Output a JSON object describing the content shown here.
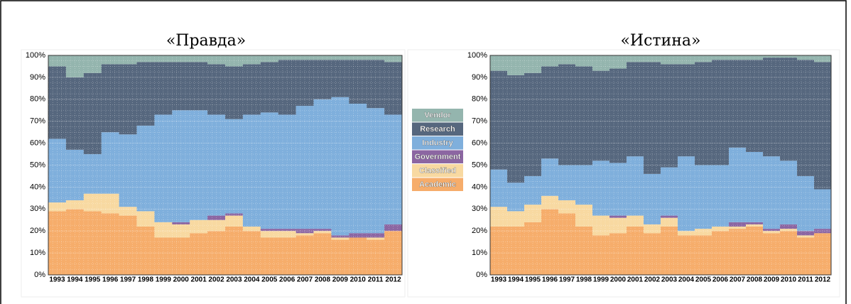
{
  "chart_data": [
    {
      "type": "stacked-bar",
      "title": "«Правда»",
      "categories": [
        "1993",
        "1994",
        "1995",
        "1996",
        "1997",
        "1998",
        "1999",
        "2000",
        "2001",
        "2002",
        "2003",
        "2004",
        "2005",
        "2006",
        "2007",
        "2008",
        "2009",
        "2010",
        "2011",
        "2012"
      ],
      "series": [
        {
          "name": "Academic",
          "color": "#f6ad6b",
          "values": [
            29,
            30,
            29,
            28,
            27,
            22,
            17,
            17,
            19,
            20,
            22,
            20,
            17,
            17,
            18,
            19,
            16,
            17,
            16,
            20
          ]
        },
        {
          "name": "Classified",
          "color": "#f8d9a1",
          "values": [
            4,
            4,
            8,
            9,
            4,
            7,
            7,
            6,
            6,
            5,
            5,
            2,
            3,
            3,
            1,
            1,
            1,
            0,
            1,
            0
          ]
        },
        {
          "name": "Government",
          "color": "#8c66a2",
          "values": [
            0,
            0,
            0,
            0,
            0,
            0,
            0,
            1,
            0,
            2,
            1,
            0,
            1,
            1,
            2,
            1,
            1,
            2,
            2,
            3
          ]
        },
        {
          "name": "Industry",
          "color": "#7fafdc",
          "values": [
            29,
            23,
            18,
            28,
            33,
            39,
            49,
            51,
            50,
            46,
            43,
            51,
            53,
            52,
            56,
            59,
            63,
            59,
            57,
            50
          ]
        },
        {
          "name": "Research",
          "color": "#56677e",
          "values": [
            33,
            33,
            37,
            31,
            32,
            29,
            24,
            22,
            22,
            23,
            24,
            23,
            23,
            25,
            21,
            18,
            17,
            20,
            22,
            24
          ]
        },
        {
          "name": "Vendor",
          "color": "#94b5ae",
          "values": [
            5,
            10,
            8,
            4,
            4,
            3,
            3,
            3,
            3,
            4,
            5,
            4,
            3,
            2,
            2,
            2,
            2,
            2,
            2,
            3
          ]
        }
      ],
      "ylim": [
        0,
        100
      ],
      "yticks": [
        {
          "value": 0,
          "label": "0%"
        },
        {
          "value": 10,
          "label": "10%"
        },
        {
          "value": 20,
          "label": "20%"
        },
        {
          "value": 30,
          "label": "30%"
        },
        {
          "value": 40,
          "label": "40%"
        },
        {
          "value": 50,
          "label": "50%"
        },
        {
          "value": 60,
          "label": "60%"
        },
        {
          "value": 70,
          "label": "70%"
        },
        {
          "value": 80,
          "label": "80%"
        },
        {
          "value": 90,
          "label": "90%"
        },
        {
          "value": 100,
          "label": "100%"
        }
      ],
      "grid": true
    },
    {
      "type": "stacked-bar",
      "title": "«Истина»",
      "categories": [
        "1993",
        "1994",
        "1995",
        "1996",
        "1997",
        "1998",
        "1999",
        "2000",
        "2001",
        "2002",
        "2003",
        "2004",
        "2005",
        "2006",
        "2007",
        "2008",
        "2009",
        "2010",
        "2011",
        "2012"
      ],
      "series": [
        {
          "color": "#f6ad6b",
          "values": [
            22,
            22,
            24,
            30,
            28,
            22,
            18,
            19,
            22,
            19,
            22,
            18,
            18,
            20,
            21,
            22,
            19,
            20,
            17,
            19
          ]
        },
        {
          "color": "#f8d9a1",
          "values": [
            9,
            7,
            8,
            6,
            6,
            10,
            9,
            7,
            5,
            4,
            4,
            2,
            3,
            2,
            1,
            1,
            1,
            1,
            1,
            0
          ]
        },
        {
          "color": "#8c66a2",
          "values": [
            0,
            0,
            0,
            0,
            0,
            0,
            0,
            1,
            0,
            0,
            1,
            0,
            0,
            0,
            2,
            1,
            1,
            2,
            2,
            2
          ]
        },
        {
          "color": "#7fafdc",
          "values": [
            17,
            13,
            13,
            17,
            16,
            18,
            25,
            24,
            27,
            23,
            22,
            34,
            29,
            28,
            34,
            32,
            33,
            29,
            25,
            18
          ]
        },
        {
          "color": "#56677e",
          "values": [
            45,
            49,
            47,
            42,
            46,
            45,
            41,
            43,
            43,
            51,
            47,
            42,
            47,
            48,
            40,
            42,
            45,
            47,
            53,
            58
          ]
        },
        {
          "color": "#94b5ae",
          "values": [
            7,
            9,
            8,
            5,
            4,
            5,
            7,
            6,
            3,
            3,
            4,
            4,
            3,
            2,
            2,
            2,
            1,
            1,
            2,
            3
          ]
        }
      ],
      "ylim": [
        0,
        100
      ],
      "yticks": [
        {
          "value": 0,
          "label": "0%"
        },
        {
          "value": 10,
          "label": "10%"
        },
        {
          "value": 20,
          "label": "20%"
        },
        {
          "value": 30,
          "label": "30%"
        },
        {
          "value": 40,
          "label": "40%"
        },
        {
          "value": 50,
          "label": "50%"
        },
        {
          "value": 60,
          "label": "60%"
        },
        {
          "value": 70,
          "label": "70%"
        },
        {
          "value": 80,
          "label": "80%"
        },
        {
          "value": 90,
          "label": "90%"
        },
        {
          "value": 100,
          "label": "100%"
        }
      ],
      "grid": true
    }
  ]
}
